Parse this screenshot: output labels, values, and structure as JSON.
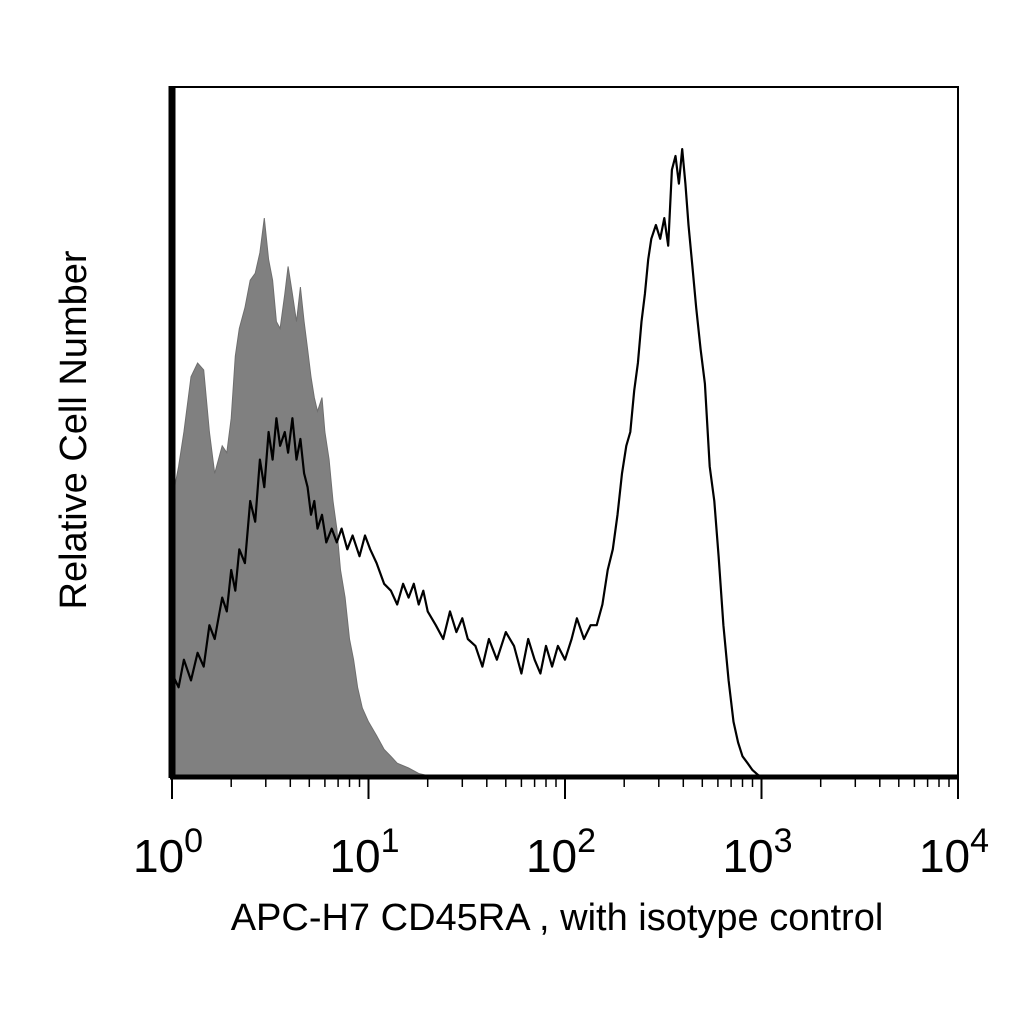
{
  "chart_data": {
    "type": "area",
    "xscale": "log",
    "xlim": [
      1,
      10000
    ],
    "ylim": [
      0,
      100
    ],
    "grid": false,
    "legend": "none",
    "xlabel": "APC-H7 CD45RA , with isotype control",
    "ylabel": "Relative Cell Number",
    "x_tick_labels": [
      {
        "base": "10",
        "exp": "0"
      },
      {
        "base": "10",
        "exp": "1"
      },
      {
        "base": "10",
        "exp": "2"
      },
      {
        "base": "10",
        "exp": "3"
      },
      {
        "base": "10",
        "exp": "4"
      }
    ],
    "series": [
      {
        "style": "filled",
        "color": "#808080",
        "points": [
          [
            1.0,
            40
          ],
          [
            1.08,
            45
          ],
          [
            1.15,
            50
          ],
          [
            1.25,
            58
          ],
          [
            1.35,
            60
          ],
          [
            1.45,
            59
          ],
          [
            1.55,
            50
          ],
          [
            1.65,
            44
          ],
          [
            1.8,
            48
          ],
          [
            1.9,
            47
          ],
          [
            2.0,
            52
          ],
          [
            2.1,
            61
          ],
          [
            2.2,
            65
          ],
          [
            2.35,
            68
          ],
          [
            2.5,
            72
          ],
          [
            2.65,
            73
          ],
          [
            2.8,
            76
          ],
          [
            2.95,
            81
          ],
          [
            3.1,
            75
          ],
          [
            3.25,
            72
          ],
          [
            3.4,
            66
          ],
          [
            3.55,
            65
          ],
          [
            3.75,
            70
          ],
          [
            3.9,
            74
          ],
          [
            4.1,
            70
          ],
          [
            4.3,
            66
          ],
          [
            4.5,
            71
          ],
          [
            4.7,
            66
          ],
          [
            4.9,
            62
          ],
          [
            5.1,
            58
          ],
          [
            5.3,
            55
          ],
          [
            5.5,
            53
          ],
          [
            5.8,
            55
          ],
          [
            6.0,
            50
          ],
          [
            6.3,
            46
          ],
          [
            6.6,
            40
          ],
          [
            6.9,
            36
          ],
          [
            7.2,
            30
          ],
          [
            7.6,
            26
          ],
          [
            8.0,
            20
          ],
          [
            8.4,
            17
          ],
          [
            8.8,
            13
          ],
          [
            9.3,
            10
          ],
          [
            10,
            8
          ],
          [
            11,
            6
          ],
          [
            12,
            4
          ],
          [
            13,
            3
          ],
          [
            14,
            2
          ],
          [
            16,
            1.3
          ],
          [
            18,
            0.5
          ],
          [
            20,
            0.2
          ],
          [
            22,
            0
          ]
        ]
      },
      {
        "style": "line",
        "color": "#000000",
        "points": [
          [
            1.0,
            15
          ],
          [
            1.08,
            13
          ],
          [
            1.15,
            17
          ],
          [
            1.25,
            14
          ],
          [
            1.35,
            18
          ],
          [
            1.45,
            16
          ],
          [
            1.55,
            22
          ],
          [
            1.65,
            20
          ],
          [
            1.8,
            26
          ],
          [
            1.9,
            24
          ],
          [
            2.0,
            30
          ],
          [
            2.1,
            27
          ],
          [
            2.2,
            33
          ],
          [
            2.35,
            31
          ],
          [
            2.5,
            40
          ],
          [
            2.65,
            37
          ],
          [
            2.8,
            46
          ],
          [
            2.95,
            42
          ],
          [
            3.1,
            50
          ],
          [
            3.25,
            46
          ],
          [
            3.4,
            52
          ],
          [
            3.55,
            48
          ],
          [
            3.75,
            50
          ],
          [
            3.9,
            47
          ],
          [
            4.1,
            52
          ],
          [
            4.3,
            46
          ],
          [
            4.5,
            49
          ],
          [
            4.7,
            44
          ],
          [
            4.9,
            42
          ],
          [
            5.1,
            38
          ],
          [
            5.3,
            40
          ],
          [
            5.5,
            36
          ],
          [
            5.8,
            38
          ],
          [
            6.1,
            34
          ],
          [
            6.5,
            36
          ],
          [
            6.9,
            34
          ],
          [
            7.3,
            36
          ],
          [
            7.8,
            33
          ],
          [
            8.3,
            35
          ],
          [
            9.0,
            32
          ],
          [
            9.6,
            35
          ],
          [
            10.2,
            33
          ],
          [
            11,
            31
          ],
          [
            12,
            28
          ],
          [
            13,
            27
          ],
          [
            14,
            25
          ],
          [
            15,
            28
          ],
          [
            16,
            26
          ],
          [
            17,
            28
          ],
          [
            18,
            25
          ],
          [
            19,
            27
          ],
          [
            20,
            24
          ],
          [
            22,
            22
          ],
          [
            24,
            20
          ],
          [
            26,
            24
          ],
          [
            28,
            21
          ],
          [
            30,
            23
          ],
          [
            32,
            20
          ],
          [
            35,
            19
          ],
          [
            38,
            16
          ],
          [
            41,
            20
          ],
          [
            45,
            17
          ],
          [
            50,
            21
          ],
          [
            55,
            19
          ],
          [
            60,
            15
          ],
          [
            65,
            20
          ],
          [
            70,
            17
          ],
          [
            75,
            15
          ],
          [
            80,
            19
          ],
          [
            86,
            16
          ],
          [
            92,
            19
          ],
          [
            100,
            17
          ],
          [
            108,
            20
          ],
          [
            115,
            23
          ],
          [
            125,
            20
          ],
          [
            135,
            22
          ],
          [
            145,
            22
          ],
          [
            155,
            25
          ],
          [
            165,
            30
          ],
          [
            175,
            33
          ],
          [
            185,
            38
          ],
          [
            195,
            44
          ],
          [
            205,
            48
          ],
          [
            215,
            50
          ],
          [
            225,
            56
          ],
          [
            235,
            60
          ],
          [
            245,
            66
          ],
          [
            255,
            70
          ],
          [
            265,
            75
          ],
          [
            275,
            78
          ],
          [
            290,
            80
          ],
          [
            305,
            78
          ],
          [
            320,
            81
          ],
          [
            335,
            77
          ],
          [
            350,
            88
          ],
          [
            365,
            90
          ],
          [
            380,
            86
          ],
          [
            395,
            91
          ],
          [
            410,
            86
          ],
          [
            425,
            80
          ],
          [
            445,
            74
          ],
          [
            465,
            68
          ],
          [
            490,
            62
          ],
          [
            515,
            57
          ],
          [
            545,
            45
          ],
          [
            575,
            40
          ],
          [
            605,
            32
          ],
          [
            640,
            22
          ],
          [
            680,
            14
          ],
          [
            720,
            8
          ],
          [
            760,
            5
          ],
          [
            800,
            3
          ],
          [
            850,
            2
          ],
          [
            900,
            1
          ],
          [
            960,
            0.3
          ],
          [
            1000,
            0
          ]
        ]
      }
    ]
  }
}
